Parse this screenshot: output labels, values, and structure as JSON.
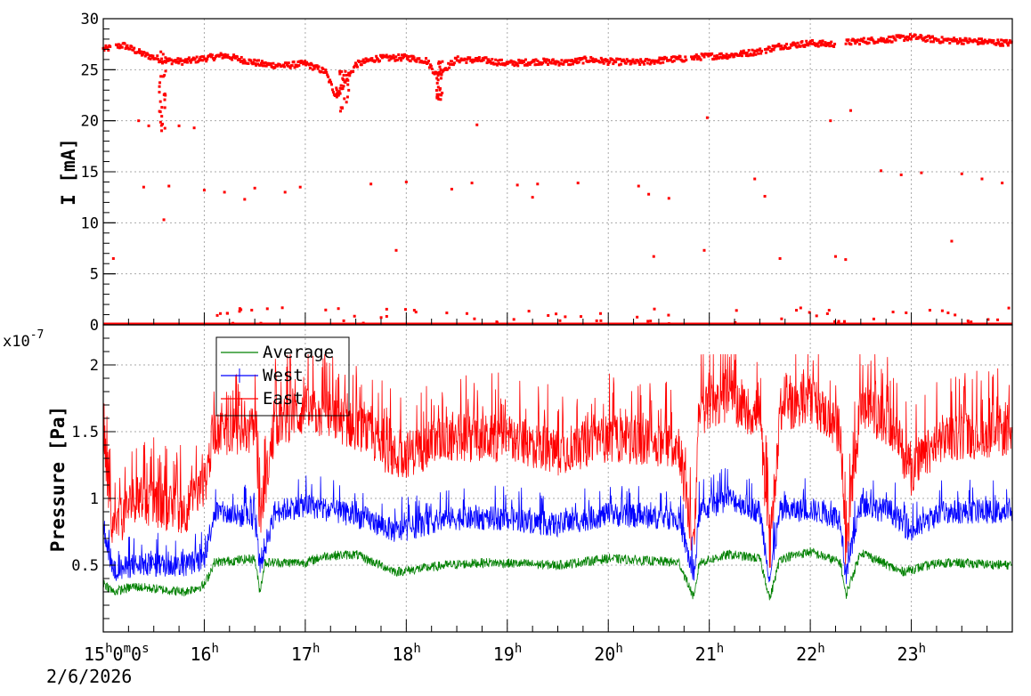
{
  "colors": {
    "current": "#ff0000",
    "average": "#008000",
    "west": "#0000ff",
    "east": "#ff0000"
  },
  "chart_data": [
    {
      "type": "scatter",
      "ylabel": "I [mA]",
      "ylim": [
        0,
        30
      ],
      "yticks": [
        0,
        5,
        10,
        15,
        20,
        25,
        30
      ],
      "grid": true,
      "series": [
        {
          "color": "#ff0000",
          "baseline": [
            [
              15.0,
              27.0
            ],
            [
              15.2,
              27.4
            ],
            [
              15.4,
              26.5
            ],
            [
              15.6,
              25.9
            ],
            [
              15.8,
              25.8
            ],
            [
              16.0,
              26.1
            ],
            [
              16.2,
              26.4
            ],
            [
              16.4,
              25.9
            ],
            [
              16.6,
              25.5
            ],
            [
              16.8,
              25.4
            ],
            [
              17.0,
              25.6
            ],
            [
              17.2,
              24.8
            ],
            [
              17.3,
              22.5
            ],
            [
              17.4,
              23.8
            ],
            [
              17.5,
              25.5
            ],
            [
              17.7,
              26.1
            ],
            [
              18.0,
              26.2
            ],
            [
              18.2,
              25.9
            ],
            [
              18.3,
              24.5
            ],
            [
              18.5,
              26.0
            ],
            [
              18.8,
              25.9
            ],
            [
              19.0,
              25.6
            ],
            [
              19.3,
              25.8
            ],
            [
              19.6,
              25.7
            ],
            [
              19.8,
              26.0
            ],
            [
              20.0,
              25.8
            ],
            [
              20.3,
              25.7
            ],
            [
              20.6,
              26.0
            ],
            [
              20.8,
              26.1
            ],
            [
              20.95,
              26.3
            ],
            [
              21.2,
              26.4
            ],
            [
              21.5,
              26.8
            ],
            [
              21.7,
              27.3
            ],
            [
              22.0,
              27.6
            ],
            [
              22.2,
              27.5
            ],
            [
              22.5,
              27.8
            ],
            [
              22.8,
              28.0
            ],
            [
              23.0,
              28.2
            ],
            [
              23.3,
              27.9
            ],
            [
              23.6,
              27.8
            ],
            [
              24.0,
              27.6
            ]
          ],
          "outliers": [
            [
              15.1,
              6.5
            ],
            [
              15.35,
              20.0
            ],
            [
              15.4,
              13.5
            ],
            [
              15.45,
              19.5
            ],
            [
              15.6,
              10.3
            ],
            [
              15.65,
              13.6
            ],
            [
              15.75,
              19.5
            ],
            [
              15.9,
              19.3
            ],
            [
              16.0,
              13.2
            ],
            [
              16.2,
              13.0
            ],
            [
              16.4,
              12.3
            ],
            [
              16.5,
              13.4
            ],
            [
              16.8,
              13.0
            ],
            [
              16.95,
              13.5
            ],
            [
              17.65,
              13.8
            ],
            [
              17.9,
              7.3
            ],
            [
              18.0,
              14.0
            ],
            [
              18.45,
              13.3
            ],
            [
              18.65,
              13.9
            ],
            [
              18.7,
              19.6
            ],
            [
              19.1,
              13.7
            ],
            [
              19.25,
              12.5
            ],
            [
              19.3,
              13.8
            ],
            [
              19.7,
              13.9
            ],
            [
              20.3,
              13.6
            ],
            [
              20.4,
              12.8
            ],
            [
              20.45,
              6.7
            ],
            [
              20.6,
              12.4
            ],
            [
              20.95,
              7.3
            ],
            [
              20.98,
              20.3
            ],
            [
              21.45,
              14.3
            ],
            [
              21.55,
              12.6
            ],
            [
              21.7,
              6.5
            ],
            [
              22.2,
              20.0
            ],
            [
              22.25,
              6.7
            ],
            [
              22.35,
              6.4
            ],
            [
              22.4,
              21.0
            ],
            [
              22.7,
              15.1
            ],
            [
              22.9,
              14.7
            ],
            [
              23.1,
              14.9
            ],
            [
              23.4,
              8.2
            ],
            [
              23.5,
              14.8
            ],
            [
              23.7,
              14.3
            ],
            [
              23.9,
              13.9
            ]
          ]
        }
      ]
    },
    {
      "type": "line",
      "ylabel": "Pressure [Pa]",
      "yscale_label": "x10",
      "yscale_exp": "-7",
      "ylim": [
        0,
        2.3
      ],
      "yticks": [
        {
          "v": 0.5,
          "label": "0.5"
        },
        {
          "v": 1.0,
          "label": "1"
        },
        {
          "v": 1.5,
          "label": "1.5"
        },
        {
          "v": 2.0,
          "label": "2"
        }
      ],
      "grid": true,
      "legend_position": "top-left",
      "series": [
        {
          "name": "Average",
          "color": "#008000",
          "profile": [
            [
              15.0,
              0.37
            ],
            [
              15.1,
              0.3
            ],
            [
              15.3,
              0.34
            ],
            [
              15.8,
              0.3
            ],
            [
              16.0,
              0.35
            ],
            [
              16.1,
              0.52
            ],
            [
              16.5,
              0.55
            ],
            [
              16.55,
              0.3
            ],
            [
              16.6,
              0.52
            ],
            [
              17.0,
              0.52
            ],
            [
              17.2,
              0.57
            ],
            [
              17.5,
              0.58
            ],
            [
              17.9,
              0.45
            ],
            [
              18.4,
              0.5
            ],
            [
              18.8,
              0.52
            ],
            [
              19.5,
              0.5
            ],
            [
              20.0,
              0.55
            ],
            [
              20.7,
              0.52
            ],
            [
              20.85,
              0.25
            ],
            [
              20.9,
              0.52
            ],
            [
              21.2,
              0.58
            ],
            [
              21.5,
              0.55
            ],
            [
              21.6,
              0.25
            ],
            [
              21.7,
              0.55
            ],
            [
              22.0,
              0.6
            ],
            [
              22.3,
              0.52
            ],
            [
              22.35,
              0.27
            ],
            [
              22.5,
              0.6
            ],
            [
              22.9,
              0.45
            ],
            [
              23.3,
              0.52
            ],
            [
              24.0,
              0.5
            ]
          ],
          "noise": 0.06
        },
        {
          "name": "West",
          "color": "#0000ff",
          "profile": [
            [
              15.0,
              0.8
            ],
            [
              15.1,
              0.45
            ],
            [
              15.3,
              0.5
            ],
            [
              15.8,
              0.5
            ],
            [
              16.0,
              0.55
            ],
            [
              16.1,
              0.9
            ],
            [
              16.5,
              0.85
            ],
            [
              16.55,
              0.5
            ],
            [
              16.7,
              0.9
            ],
            [
              17.0,
              0.95
            ],
            [
              17.3,
              0.9
            ],
            [
              17.6,
              0.85
            ],
            [
              17.9,
              0.75
            ],
            [
              18.4,
              0.85
            ],
            [
              19.0,
              0.85
            ],
            [
              19.5,
              0.8
            ],
            [
              20.0,
              0.88
            ],
            [
              20.7,
              0.85
            ],
            [
              20.85,
              0.4
            ],
            [
              20.9,
              0.9
            ],
            [
              21.2,
              1.0
            ],
            [
              21.5,
              0.9
            ],
            [
              21.6,
              0.4
            ],
            [
              21.7,
              0.9
            ],
            [
              22.0,
              0.92
            ],
            [
              22.3,
              0.85
            ],
            [
              22.35,
              0.42
            ],
            [
              22.5,
              0.95
            ],
            [
              22.8,
              0.9
            ],
            [
              23.0,
              0.75
            ],
            [
              23.3,
              0.9
            ],
            [
              24.0,
              0.9
            ]
          ],
          "noise": 0.15
        },
        {
          "name": "East",
          "color": "#ff0000",
          "profile": [
            [
              15.0,
              1.45
            ],
            [
              15.1,
              0.75
            ],
            [
              15.3,
              1.0
            ],
            [
              15.8,
              0.9
            ],
            [
              16.0,
              1.1
            ],
            [
              16.1,
              1.5
            ],
            [
              16.5,
              1.5
            ],
            [
              16.55,
              0.85
            ],
            [
              16.7,
              1.55
            ],
            [
              17.0,
              1.65
            ],
            [
              17.3,
              1.6
            ],
            [
              17.6,
              1.5
            ],
            [
              17.9,
              1.3
            ],
            [
              18.4,
              1.45
            ],
            [
              19.0,
              1.45
            ],
            [
              19.5,
              1.35
            ],
            [
              20.0,
              1.45
            ],
            [
              20.7,
              1.4
            ],
            [
              20.85,
              0.6
            ],
            [
              20.9,
              1.65
            ],
            [
              21.2,
              1.75
            ],
            [
              21.5,
              1.6
            ],
            [
              21.6,
              0.6
            ],
            [
              21.7,
              1.65
            ],
            [
              22.0,
              1.75
            ],
            [
              22.3,
              1.5
            ],
            [
              22.35,
              0.6
            ],
            [
              22.5,
              1.7
            ],
            [
              22.8,
              1.55
            ],
            [
              23.0,
              1.2
            ],
            [
              23.3,
              1.45
            ],
            [
              24.0,
              1.5
            ]
          ],
          "noise": 0.3
        }
      ]
    }
  ],
  "xaxis": {
    "xlim": [
      15.0,
      24.0
    ],
    "ticks": [
      {
        "v": 15,
        "label": "15h0m0s"
      },
      {
        "v": 16,
        "label": "16h"
      },
      {
        "v": 17,
        "label": "17h"
      },
      {
        "v": 18,
        "label": "18h"
      },
      {
        "v": 19,
        "label": "19h"
      },
      {
        "v": 20,
        "label": "20h"
      },
      {
        "v": 21,
        "label": "21h"
      },
      {
        "v": 22,
        "label": "22h"
      },
      {
        "v": 23,
        "label": "23h"
      }
    ],
    "date": "2/6/2026"
  }
}
